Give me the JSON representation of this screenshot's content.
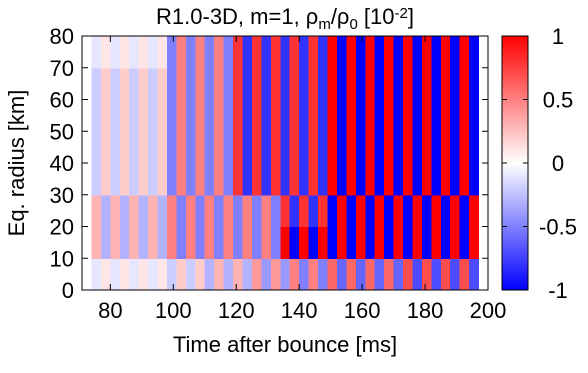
{
  "chart_data": {
    "type": "heatmap",
    "title_parts": [
      "R1.0-3D, m=1, ρ",
      "m",
      "/ρ",
      "0",
      " [10",
      "-2",
      "]"
    ],
    "xlabel": "Time after bounce [ms]",
    "ylabel": "Eq. radius [km]",
    "xlim": [
      71,
      200
    ],
    "ylim": [
      0,
      80
    ],
    "xticks": [
      80,
      100,
      120,
      140,
      160,
      180,
      200
    ],
    "yticks": [
      0,
      10,
      20,
      30,
      40,
      50,
      60,
      70,
      80
    ],
    "zlim": [
      -1,
      1
    ],
    "zticks": [
      -1,
      -0.5,
      0,
      0.5,
      1
    ],
    "colors": [
      "#0000ff",
      "#ffffff",
      "#ff0000"
    ],
    "x": [
      74,
      77,
      80,
      83,
      86,
      89,
      92,
      95,
      98,
      101,
      104,
      107,
      110,
      113,
      116,
      119,
      122,
      125,
      128,
      131,
      134,
      137,
      140,
      143,
      146,
      149,
      152,
      155,
      158,
      161,
      164,
      167,
      170,
      173,
      176,
      179,
      182,
      185,
      188,
      191,
      194,
      197
    ],
    "y": [
      0,
      10,
      20,
      30,
      40,
      50,
      60,
      70,
      80
    ],
    "z": [
      [
        -0.1,
        0.1,
        -0.1,
        0.1,
        -0.1,
        0.1,
        -0.1,
        0.1,
        -0.2,
        0.2,
        -0.2,
        0.2,
        -0.3,
        0.3,
        -0.3,
        0.3,
        -0.3,
        0.4,
        -0.4,
        0.4,
        -0.4,
        0.5,
        -0.5,
        0.5,
        -0.5,
        0.6,
        -0.6,
        0.6,
        -0.6,
        0.6,
        -0.6,
        0.6,
        -0.6,
        0.7,
        -0.7,
        0.7,
        -0.7,
        0.7,
        -0.7,
        0.7,
        -0.7
      ],
      [
        0.3,
        -0.3,
        0.3,
        -0.3,
        0.3,
        -0.3,
        0.3,
        -0.3,
        0.5,
        -0.5,
        0.5,
        -0.5,
        0.5,
        -0.5,
        0.5,
        -0.5,
        0.5,
        -0.5,
        0.5,
        -0.5,
        1,
        -1,
        1,
        -1,
        1,
        -1,
        1,
        -1,
        1,
        -1,
        1,
        -1,
        1,
        -1,
        1,
        -1,
        1,
        -1,
        1,
        -1,
        1
      ],
      [
        0.3,
        -0.3,
        0.3,
        -0.3,
        0.3,
        -0.3,
        0.3,
        -0.3,
        0.5,
        -0.5,
        0.5,
        -0.5,
        0.5,
        -0.5,
        0.5,
        -0.5,
        0.5,
        -0.5,
        0.5,
        -0.5,
        0.8,
        -0.8,
        0.8,
        -0.8,
        0.8,
        -1,
        1,
        -1,
        1,
        -1,
        1,
        -1,
        1,
        -1,
        1,
        -1,
        1,
        -1,
        1,
        -1,
        1
      ],
      [
        -0.2,
        0.2,
        -0.2,
        0.2,
        -0.2,
        0.2,
        -0.2,
        0.2,
        -0.5,
        0.5,
        -0.5,
        0.5,
        -0.5,
        0.5,
        -0.5,
        0.8,
        -0.8,
        0.8,
        -0.8,
        0.8,
        -0.8,
        0.8,
        -0.8,
        0.8,
        -0.8,
        1,
        -1,
        1,
        -1,
        1,
        -1,
        1,
        -1,
        1,
        -1,
        1,
        -1,
        1,
        -1,
        1,
        -1
      ],
      [
        -0.2,
        0.2,
        -0.2,
        0.2,
        -0.2,
        0.2,
        -0.2,
        0.2,
        -0.5,
        0.5,
        -0.5,
        0.5,
        -0.5,
        0.5,
        -0.5,
        0.8,
        -0.8,
        0.8,
        -0.8,
        0.8,
        -0.8,
        0.8,
        -0.8,
        0.8,
        -0.8,
        1,
        -1,
        1,
        -1,
        1,
        -1,
        1,
        -1,
        1,
        -1,
        1,
        -1,
        1,
        -1,
        1,
        -1
      ],
      [
        -0.2,
        0.2,
        -0.2,
        0.2,
        -0.2,
        0.2,
        -0.2,
        0.2,
        -0.5,
        0.5,
        -0.5,
        0.5,
        -0.5,
        0.5,
        -0.5,
        0.8,
        -0.8,
        0.8,
        -0.8,
        0.8,
        -0.8,
        0.8,
        -0.8,
        0.8,
        -0.8,
        1,
        -1,
        1,
        -1,
        1,
        -1,
        1,
        -1,
        1,
        -1,
        1,
        -1,
        1,
        -1,
        1,
        -1
      ],
      [
        -0.2,
        0.2,
        -0.2,
        0.2,
        -0.2,
        0.2,
        -0.2,
        0.2,
        -0.5,
        0.5,
        -0.5,
        0.5,
        -0.5,
        0.5,
        -0.5,
        0.8,
        -0.8,
        0.8,
        -0.8,
        0.8,
        -0.8,
        0.8,
        -0.8,
        0.8,
        -0.8,
        1,
        -1,
        1,
        -1,
        1,
        -1,
        1,
        -1,
        1,
        -1,
        1,
        -1,
        1,
        -1,
        1,
        -1
      ],
      [
        -0.1,
        0.1,
        -0.1,
        0.1,
        -0.1,
        0.1,
        -0.1,
        0.1,
        -0.5,
        0.5,
        -0.5,
        0.5,
        -0.5,
        0.5,
        -0.5,
        0.8,
        -0.8,
        0.8,
        -0.8,
        0.8,
        -0.8,
        0.8,
        -0.8,
        0.8,
        -0.8,
        1,
        -1,
        1,
        -1,
        1,
        -1,
        1,
        -1,
        1,
        -1,
        1,
        -1,
        1,
        -1,
        1,
        -1
      ]
    ]
  }
}
